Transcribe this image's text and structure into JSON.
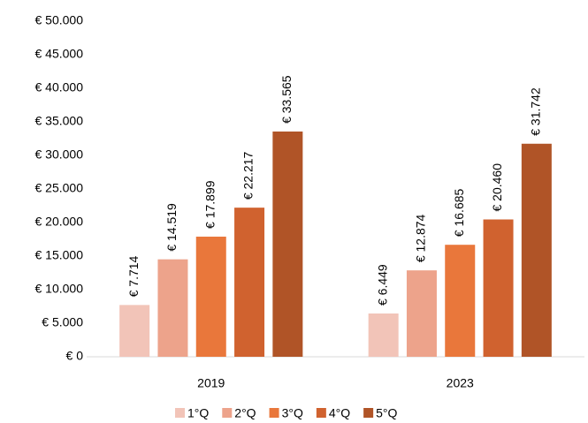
{
  "chart_data": {
    "type": "bar",
    "categories": [
      "2019",
      "2023"
    ],
    "series": [
      {
        "name": "1°Q",
        "color": "#f2c4b8",
        "values": [
          7714,
          6449
        ],
        "value_labels": [
          "€ 7.714",
          "€ 6.449"
        ]
      },
      {
        "name": "2°Q",
        "color": "#eda38b",
        "values": [
          14519,
          12874
        ],
        "value_labels": [
          "€ 14.519",
          "€ 12.874"
        ]
      },
      {
        "name": "3°Q",
        "color": "#e9773b",
        "values": [
          17899,
          16685
        ],
        "value_labels": [
          "€ 17.899",
          "€ 16.685"
        ]
      },
      {
        "name": "4°Q",
        "color": "#d0622f",
        "values": [
          22217,
          20460
        ],
        "value_labels": [
          "€ 22.217",
          "€ 20.460"
        ]
      },
      {
        "name": "5°Q",
        "color": "#b05427",
        "values": [
          33565,
          31742
        ],
        "value_labels": [
          "€ 33.565",
          "€ 31.742"
        ]
      }
    ],
    "ylim": [
      0,
      50000
    ],
    "yticks": [
      {
        "value": 0,
        "label": "€ 0"
      },
      {
        "value": 5000,
        "label": "€ 5.000"
      },
      {
        "value": 10000,
        "label": "€ 10.000"
      },
      {
        "value": 15000,
        "label": "€ 15.000"
      },
      {
        "value": 20000,
        "label": "€ 20.000"
      },
      {
        "value": 25000,
        "label": "€ 25.000"
      },
      {
        "value": 30000,
        "label": "€ 30.000"
      },
      {
        "value": 35000,
        "label": "€ 35.000"
      },
      {
        "value": 40000,
        "label": "€ 40.000"
      },
      {
        "value": 45000,
        "label": "€ 45.000"
      },
      {
        "value": 50000,
        "label": "€ 50.000"
      }
    ],
    "grid": false,
    "legend": "bottom"
  }
}
